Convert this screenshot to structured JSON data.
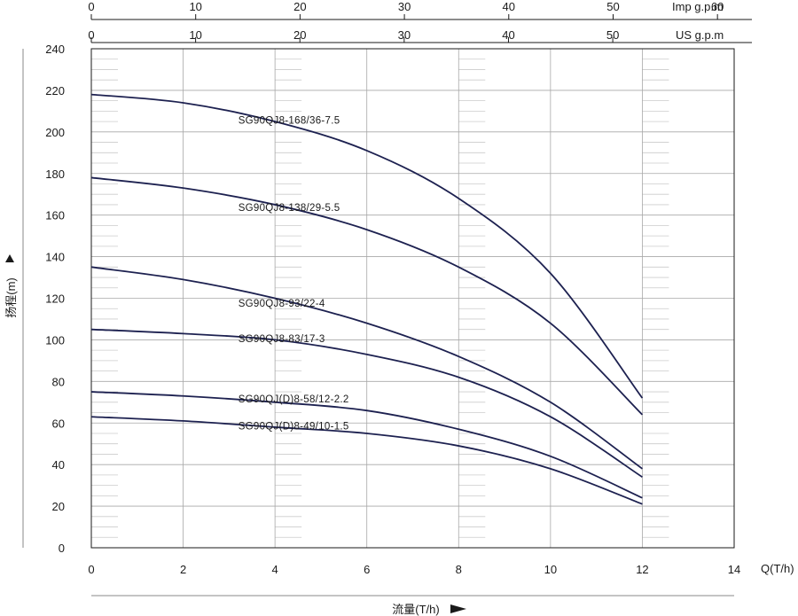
{
  "chart_data": {
    "type": "line",
    "xlabel": "流量(T/h)",
    "ylabel": "扬程(m)",
    "x_unit_label": "Q(T/h)",
    "xlim": [
      0,
      14
    ],
    "ylim": [
      0,
      240
    ],
    "x_ticks": [
      "0",
      "2",
      "4",
      "6",
      "8",
      "10",
      "12",
      "14"
    ],
    "y_ticks": [
      "0",
      "20",
      "40",
      "60",
      "80",
      "100",
      "120",
      "140",
      "160",
      "180",
      "200",
      "220",
      "240"
    ],
    "secondary_axes": [
      {
        "name": "Imp g.p.m",
        "ticks": [
          "0",
          "10",
          "20",
          "30",
          "40",
          "50",
          "60"
        ],
        "values": [
          0,
          10,
          20,
          30,
          40,
          50,
          60
        ],
        "factor": 4.4
      },
      {
        "name": "US g.p.m",
        "ticks": [
          "0",
          "10",
          "20",
          "30",
          "40",
          "50"
        ],
        "values": [
          0,
          10,
          20,
          30,
          40,
          50
        ],
        "factor": 4.4029
      }
    ],
    "grid": true,
    "series": [
      {
        "name": "SG90QJ8-168/36-7.5",
        "x": [
          0,
          2,
          4,
          6,
          8,
          10,
          12
        ],
        "y": [
          218,
          214,
          205,
          191,
          168,
          132,
          72
        ],
        "label_pos": [
          3.2,
          204
        ]
      },
      {
        "name": "SG90QJ8-138/29-5.5",
        "x": [
          0,
          2,
          4,
          6,
          8,
          10,
          12
        ],
        "y": [
          178,
          173,
          165,
          153,
          135,
          108,
          64
        ],
        "label_pos": [
          3.2,
          162
        ]
      },
      {
        "name": "SG90QJ8-93/22-4",
        "x": [
          0,
          2,
          4,
          6,
          8,
          10,
          12
        ],
        "y": [
          135,
          129,
          120,
          108,
          92,
          70,
          38
        ],
        "label_pos": [
          3.2,
          116
        ]
      },
      {
        "name": "SG90QJ8-83/17-3",
        "x": [
          0,
          2,
          4,
          6,
          8,
          10,
          12
        ],
        "y": [
          105,
          103,
          100,
          93,
          82,
          63,
          34
        ],
        "label_pos": [
          3.2,
          99
        ]
      },
      {
        "name": "SG90QJ(D)8-58/12-2.2",
        "x": [
          0,
          2,
          4,
          6,
          8,
          10,
          12
        ],
        "y": [
          75,
          73,
          70,
          66,
          57,
          44,
          24
        ],
        "label_pos": [
          3.2,
          70
        ]
      },
      {
        "name": "SG90QJ(D)8-49/10-1.5",
        "x": [
          0,
          2,
          4,
          6,
          8,
          10,
          12
        ],
        "y": [
          63,
          61,
          58,
          55,
          49,
          38,
          21
        ],
        "label_pos": [
          3.2,
          57
        ]
      }
    ],
    "colors": {
      "curve": "#1d2150",
      "grid": "#a8a8a8",
      "minor_grid": "#cccccc",
      "axis": "#1a1a1a"
    }
  }
}
